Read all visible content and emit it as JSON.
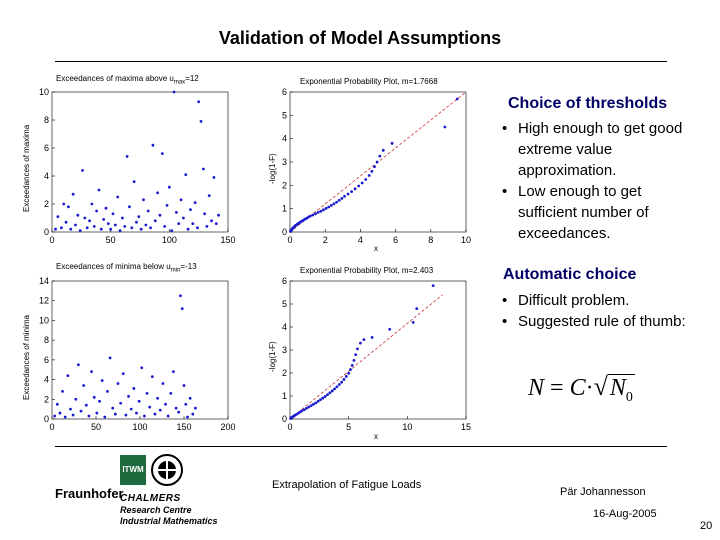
{
  "title": "Validation of Model Assumptions",
  "plots": {
    "p1": {
      "title_pre": "Exceedances of maxima above u",
      "title_sub": "max",
      "title_post": "=12",
      "ylabel": "Exceedances of maxima",
      "xticks": [
        "0",
        "50",
        "100",
        "150"
      ],
      "yticks": [
        "0",
        "2",
        "4",
        "6",
        "8",
        "10"
      ]
    },
    "p2": {
      "title": "Exponential Probability Plot, m=1.7668",
      "ylabel": "-log(1-F)",
      "xlabel": "x",
      "xticks": [
        "0",
        "2",
        "4",
        "6",
        "8",
        "10"
      ],
      "yticks": [
        "0",
        "1",
        "2",
        "3",
        "4",
        "5",
        "6"
      ]
    },
    "p3": {
      "title_pre": "Exceedances of minima below u",
      "title_sub": "min",
      "title_post": "=-13",
      "ylabel": "Exceedances of minima",
      "xticks": [
        "0",
        "50",
        "100",
        "150",
        "200"
      ],
      "yticks": [
        "0",
        "2",
        "4",
        "6",
        "8",
        "10",
        "12",
        "14"
      ]
    },
    "p4": {
      "title": "Exponential Probability Plot, m=2.403",
      "ylabel": "-log(1-F)",
      "xlabel": "x",
      "xticks": [
        "0",
        "5",
        "10",
        "15"
      ],
      "yticks": [
        "0",
        "1",
        "2",
        "3",
        "4",
        "5",
        "6"
      ]
    }
  },
  "chart_data": [
    {
      "type": "scatter",
      "title": "Exceedances of maxima above u_max=12",
      "xlabel": "",
      "ylabel": "Exceedances of maxima",
      "xlim": [
        0,
        150
      ],
      "ylim": [
        0,
        10
      ],
      "points": [
        [
          3,
          0.2
        ],
        [
          5,
          1.1
        ],
        [
          8,
          0.3
        ],
        [
          10,
          2.0
        ],
        [
          12,
          0.7
        ],
        [
          14,
          1.8
        ],
        [
          16,
          0.2
        ],
        [
          18,
          2.7
        ],
        [
          20,
          0.5
        ],
        [
          22,
          1.2
        ],
        [
          24,
          0.1
        ],
        [
          26,
          4.4
        ],
        [
          28,
          1.0
        ],
        [
          30,
          0.3
        ],
        [
          32,
          0.8
        ],
        [
          34,
          2.0
        ],
        [
          36,
          0.4
        ],
        [
          38,
          1.5
        ],
        [
          40,
          3.0
        ],
        [
          42,
          0.2
        ],
        [
          44,
          0.9
        ],
        [
          46,
          1.7
        ],
        [
          48,
          0.6
        ],
        [
          50,
          0.2
        ],
        [
          52,
          1.3
        ],
        [
          54,
          0.5
        ],
        [
          56,
          2.5
        ],
        [
          58,
          0.1
        ],
        [
          60,
          1.0
        ],
        [
          62,
          0.4
        ],
        [
          64,
          5.4
        ],
        [
          66,
          1.8
        ],
        [
          68,
          0.3
        ],
        [
          70,
          3.6
        ],
        [
          72,
          0.7
        ],
        [
          74,
          1.1
        ],
        [
          76,
          0.2
        ],
        [
          78,
          2.3
        ],
        [
          80,
          0.5
        ],
        [
          82,
          1.5
        ],
        [
          84,
          0.3
        ],
        [
          86,
          6.2
        ],
        [
          88,
          0.8
        ],
        [
          90,
          2.8
        ],
        [
          92,
          1.2
        ],
        [
          94,
          5.6
        ],
        [
          96,
          0.4
        ],
        [
          98,
          1.9
        ],
        [
          100,
          3.2
        ],
        [
          102,
          0.1
        ],
        [
          104,
          10.0
        ],
        [
          106,
          1.4
        ],
        [
          108,
          0.6
        ],
        [
          110,
          2.3
        ],
        [
          112,
          1.0
        ],
        [
          114,
          4.1
        ],
        [
          116,
          0.2
        ],
        [
          118,
          1.6
        ],
        [
          120,
          0.6
        ],
        [
          122,
          2.1
        ],
        [
          124,
          0.3
        ],
        [
          125,
          9.3
        ],
        [
          127,
          7.9
        ],
        [
          129,
          4.5
        ],
        [
          130,
          1.3
        ],
        [
          132,
          0.4
        ],
        [
          134,
          2.6
        ],
        [
          136,
          0.8
        ],
        [
          138,
          3.9
        ],
        [
          140,
          0.6
        ],
        [
          142,
          1.2
        ]
      ]
    },
    {
      "type": "scatter",
      "title": "Exponential Probability Plot, m=1.7668",
      "xlabel": "x",
      "ylabel": "-log(1-F)",
      "xlim": [
        0,
        10
      ],
      "ylim": [
        0,
        6
      ],
      "points": [
        [
          0.02,
          0.02
        ],
        [
          0.05,
          0.05
        ],
        [
          0.08,
          0.09
        ],
        [
          0.12,
          0.12
        ],
        [
          0.15,
          0.16
        ],
        [
          0.2,
          0.19
        ],
        [
          0.25,
          0.23
        ],
        [
          0.3,
          0.27
        ],
        [
          0.36,
          0.3
        ],
        [
          0.42,
          0.34
        ],
        [
          0.5,
          0.38
        ],
        [
          0.58,
          0.42
        ],
        [
          0.66,
          0.46
        ],
        [
          0.75,
          0.5
        ],
        [
          0.85,
          0.55
        ],
        [
          0.95,
          0.59
        ],
        [
          1.05,
          0.64
        ],
        [
          1.15,
          0.68
        ],
        [
          1.3,
          0.73
        ],
        [
          1.45,
          0.78
        ],
        [
          1.6,
          0.84
        ],
        [
          1.75,
          0.89
        ],
        [
          1.9,
          0.95
        ],
        [
          2.05,
          1.01
        ],
        [
          2.2,
          1.07
        ],
        [
          2.35,
          1.14
        ],
        [
          2.5,
          1.21
        ],
        [
          2.65,
          1.28
        ],
        [
          2.8,
          1.36
        ],
        [
          2.95,
          1.44
        ],
        [
          3.1,
          1.53
        ],
        [
          3.3,
          1.63
        ],
        [
          3.5,
          1.73
        ],
        [
          3.7,
          1.85
        ],
        [
          3.9,
          1.97
        ],
        [
          4.1,
          2.1
        ],
        [
          4.3,
          2.25
        ],
        [
          4.5,
          2.42
        ],
        [
          4.65,
          2.6
        ],
        [
          4.8,
          2.8
        ],
        [
          4.95,
          3.0
        ],
        [
          5.1,
          3.25
        ],
        [
          5.3,
          3.5
        ],
        [
          5.8,
          3.8
        ],
        [
          8.8,
          4.5
        ],
        [
          9.5,
          5.7
        ]
      ],
      "fit_line": {
        "from": [
          0,
          0
        ],
        "to": [
          10,
          6
        ]
      }
    },
    {
      "type": "scatter",
      "title": "Exceedances of minima below u_min=-13",
      "xlabel": "",
      "ylabel": "Exceedances of minima",
      "xlim": [
        0,
        200
      ],
      "ylim": [
        0,
        14
      ],
      "points": [
        [
          3,
          0.3
        ],
        [
          6,
          1.5
        ],
        [
          9,
          0.6
        ],
        [
          12,
          2.8
        ],
        [
          15,
          0.2
        ],
        [
          18,
          4.4
        ],
        [
          21,
          1.0
        ],
        [
          24,
          0.4
        ],
        [
          27,
          2.0
        ],
        [
          30,
          5.5
        ],
        [
          33,
          0.8
        ],
        [
          36,
          3.4
        ],
        [
          39,
          1.4
        ],
        [
          42,
          0.3
        ],
        [
          45,
          4.8
        ],
        [
          48,
          2.2
        ],
        [
          51,
          0.6
        ],
        [
          54,
          1.8
        ],
        [
          57,
          3.9
        ],
        [
          60,
          0.2
        ],
        [
          63,
          2.8
        ],
        [
          66,
          6.2
        ],
        [
          69,
          1.1
        ],
        [
          72,
          0.5
        ],
        [
          75,
          3.6
        ],
        [
          78,
          1.6
        ],
        [
          81,
          4.6
        ],
        [
          84,
          0.4
        ],
        [
          87,
          2.3
        ],
        [
          90,
          1.0
        ],
        [
          93,
          3.1
        ],
        [
          96,
          0.6
        ],
        [
          99,
          1.8
        ],
        [
          102,
          5.2
        ],
        [
          105,
          0.3
        ],
        [
          108,
          2.6
        ],
        [
          111,
          1.2
        ],
        [
          114,
          4.3
        ],
        [
          117,
          0.5
        ],
        [
          120,
          2.1
        ],
        [
          123,
          0.9
        ],
        [
          126,
          3.6
        ],
        [
          129,
          1.5
        ],
        [
          132,
          0.3
        ],
        [
          135,
          2.6
        ],
        [
          138,
          4.8
        ],
        [
          141,
          1.1
        ],
        [
          144,
          0.7
        ],
        [
          146,
          12.5
        ],
        [
          148,
          11.2
        ],
        [
          150,
          3.4
        ],
        [
          152,
          1.5
        ],
        [
          154,
          0.2
        ],
        [
          157,
          2.1
        ],
        [
          160,
          0.5
        ],
        [
          163,
          1.1
        ]
      ]
    },
    {
      "type": "scatter",
      "title": "Exponential Probability Plot, m=2.403",
      "xlabel": "x",
      "ylabel": "-log(1-F)",
      "xlim": [
        0,
        15
      ],
      "ylim": [
        0,
        6
      ],
      "points": [
        [
          0.05,
          0.02
        ],
        [
          0.1,
          0.05
        ],
        [
          0.2,
          0.08
        ],
        [
          0.3,
          0.12
        ],
        [
          0.4,
          0.16
        ],
        [
          0.55,
          0.2
        ],
        [
          0.7,
          0.25
        ],
        [
          0.85,
          0.3
        ],
        [
          1.0,
          0.35
        ],
        [
          1.2,
          0.4
        ],
        [
          1.4,
          0.46
        ],
        [
          1.6,
          0.52
        ],
        [
          1.8,
          0.58
        ],
        [
          2.0,
          0.64
        ],
        [
          2.2,
          0.7
        ],
        [
          2.4,
          0.77
        ],
        [
          2.6,
          0.84
        ],
        [
          2.8,
          0.91
        ],
        [
          3.0,
          0.98
        ],
        [
          3.2,
          1.06
        ],
        [
          3.4,
          1.14
        ],
        [
          3.6,
          1.22
        ],
        [
          3.8,
          1.31
        ],
        [
          4.0,
          1.4
        ],
        [
          4.2,
          1.5
        ],
        [
          4.4,
          1.6
        ],
        [
          4.6,
          1.72
        ],
        [
          4.8,
          1.85
        ],
        [
          5.0,
          1.99
        ],
        [
          5.15,
          2.15
        ],
        [
          5.3,
          2.33
        ],
        [
          5.45,
          2.55
        ],
        [
          5.6,
          2.8
        ],
        [
          5.75,
          3.05
        ],
        [
          6.0,
          3.3
        ],
        [
          6.3,
          3.45
        ],
        [
          7.0,
          3.55
        ],
        [
          8.5,
          3.9
        ],
        [
          10.5,
          4.2
        ],
        [
          10.8,
          4.8
        ],
        [
          12.2,
          5.8
        ]
      ],
      "fit_line": {
        "from": [
          0,
          0
        ],
        "to": [
          13,
          5.4
        ]
      }
    }
  ],
  "side": {
    "heading1": "Choice of thresholds",
    "bullets1": [
      "High enough to get good extreme value approximation.",
      "Low enough to get sufficient number of exceedances."
    ],
    "heading2": "Automatic choice",
    "bullets2": [
      "Difficult problem.",
      "Suggested rule of thumb:"
    ],
    "formula_N": "N",
    "formula_eq": "=",
    "formula_C": "C",
    "formula_dot": "·",
    "formula_N0": "N",
    "formula_sub": "0"
  },
  "footer": {
    "center": "Extrapolation of Fatigue Loads",
    "author": "Pär Johannesson",
    "date": "16-Aug-2005",
    "page": "20",
    "logo_fraunhofer": "Fraunhofer",
    "logo_itwm": "ITWM",
    "logo_chalmers": "CHALMERS",
    "logo_line1": "Research Centre",
    "logo_line2": "Industrial Mathematics"
  },
  "colors": {
    "marker": "#1a1ad0",
    "fit_line": "#cc3333",
    "heading": "#000066"
  }
}
